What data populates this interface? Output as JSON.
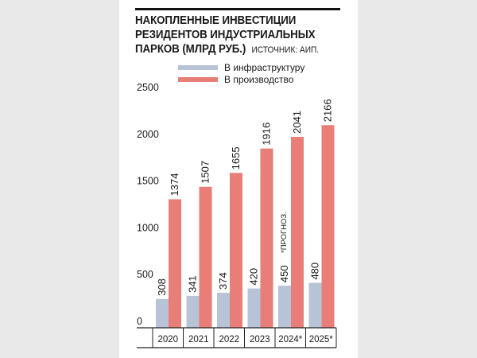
{
  "title_lines": [
    "НАКОПЛЕННЫЕ ИНВЕСТИЦИИ",
    "РЕЗИДЕНТОВ ИНДУСТРИАЛЬНЫХ",
    "ПАРКОВ (МЛРД РУБ.)"
  ],
  "source": "ИСТОЧНИК: АИП.",
  "note": "*ПРОГНОЗ.",
  "colors": {
    "infrastructure": "#b7c3d6",
    "production": "#e97e78",
    "axis": "#222222",
    "grid": "#cfcfcf",
    "rule": "#111111"
  },
  "chart_data": {
    "type": "bar",
    "categories": [
      "2020",
      "2021",
      "2022",
      "2023",
      "2024*",
      "2025*"
    ],
    "series": [
      {
        "name": "В инфраструктуру",
        "values": [
          308,
          341,
          374,
          420,
          450,
          480
        ]
      },
      {
        "name": "В производство",
        "values": [
          1374,
          1507,
          1655,
          1916,
          2041,
          2166
        ]
      }
    ],
    "yticks": [
      0,
      500,
      1000,
      1500,
      2000,
      2500
    ],
    "ylim": [
      0,
      2500
    ],
    "legend_position": "top",
    "grid": false
  }
}
